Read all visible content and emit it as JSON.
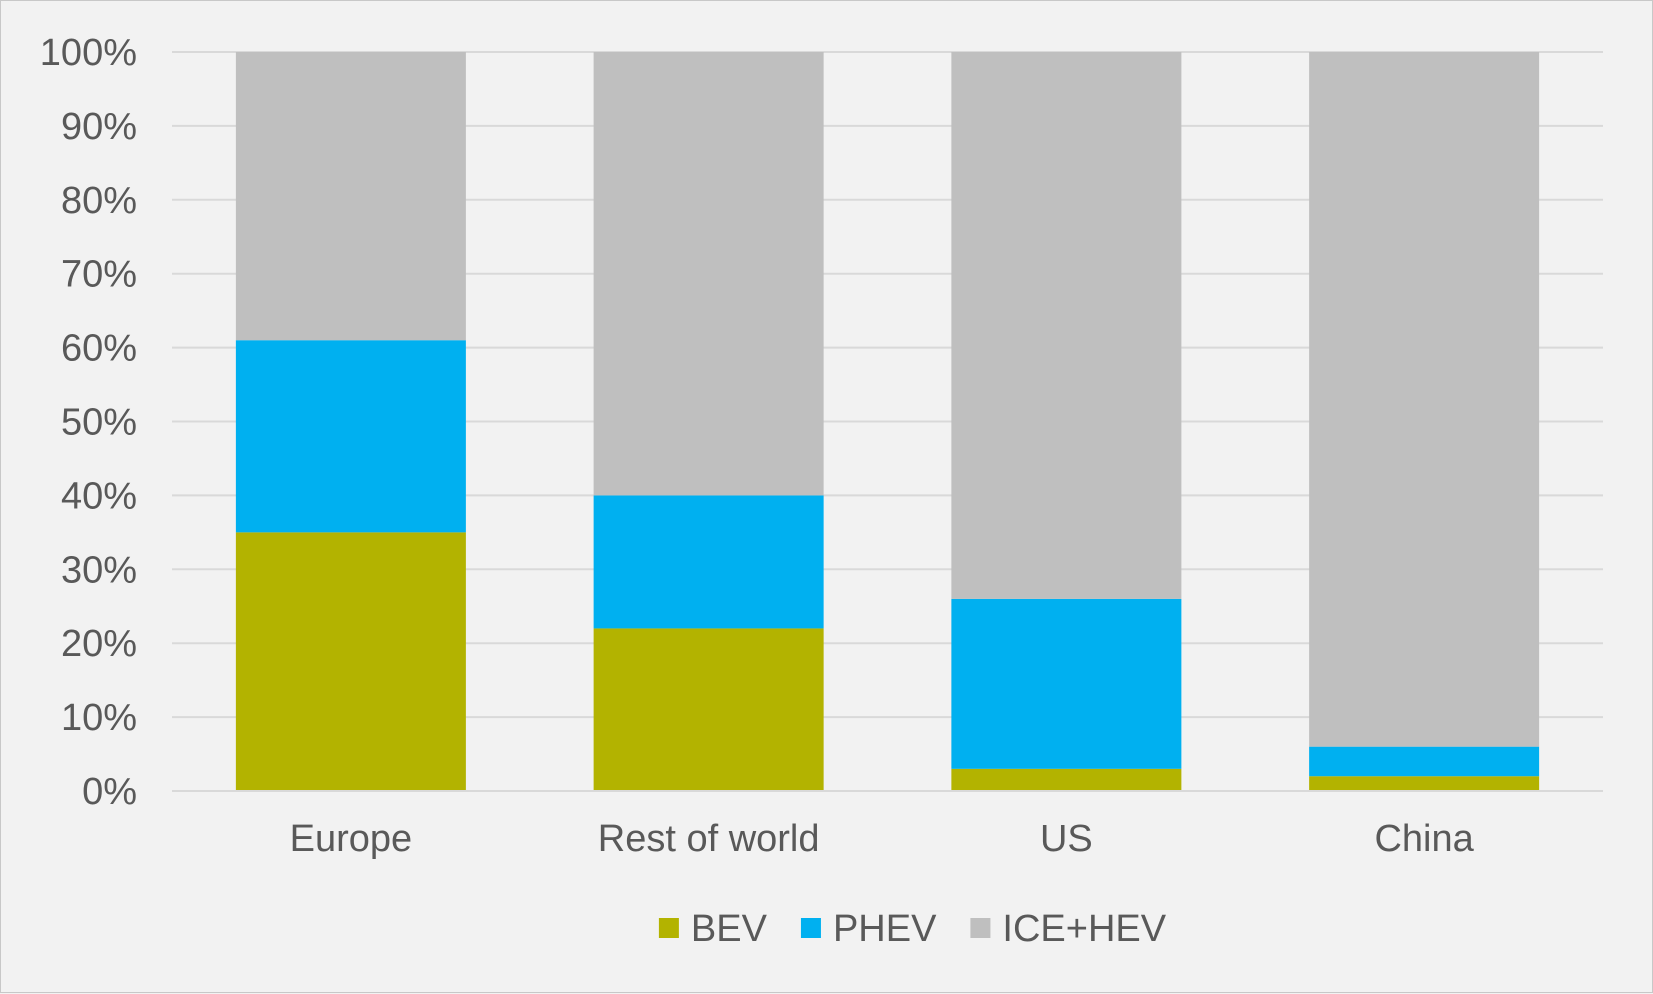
{
  "chart_data": {
    "type": "bar",
    "stacked": true,
    "categories": [
      "Europe",
      "Rest of world",
      "US",
      "China"
    ],
    "series": [
      {
        "name": "BEV",
        "color": "#b3b300",
        "values": [
          35,
          22,
          3,
          2
        ]
      },
      {
        "name": "PHEV",
        "color": "#00b0f0",
        "values": [
          26,
          18,
          23,
          4
        ]
      },
      {
        "name": "ICE+HEV",
        "color": "#bfbfbf",
        "values": [
          39,
          60,
          74,
          94
        ]
      }
    ],
    "title": "",
    "xlabel": "",
    "ylabel": "",
    "ylim": [
      0,
      100
    ],
    "yticks": [
      "0%",
      "10%",
      "20%",
      "30%",
      "40%",
      "50%",
      "60%",
      "70%",
      "80%",
      "90%",
      "100%"
    ],
    "grid": true,
    "legend_position": "bottom"
  }
}
